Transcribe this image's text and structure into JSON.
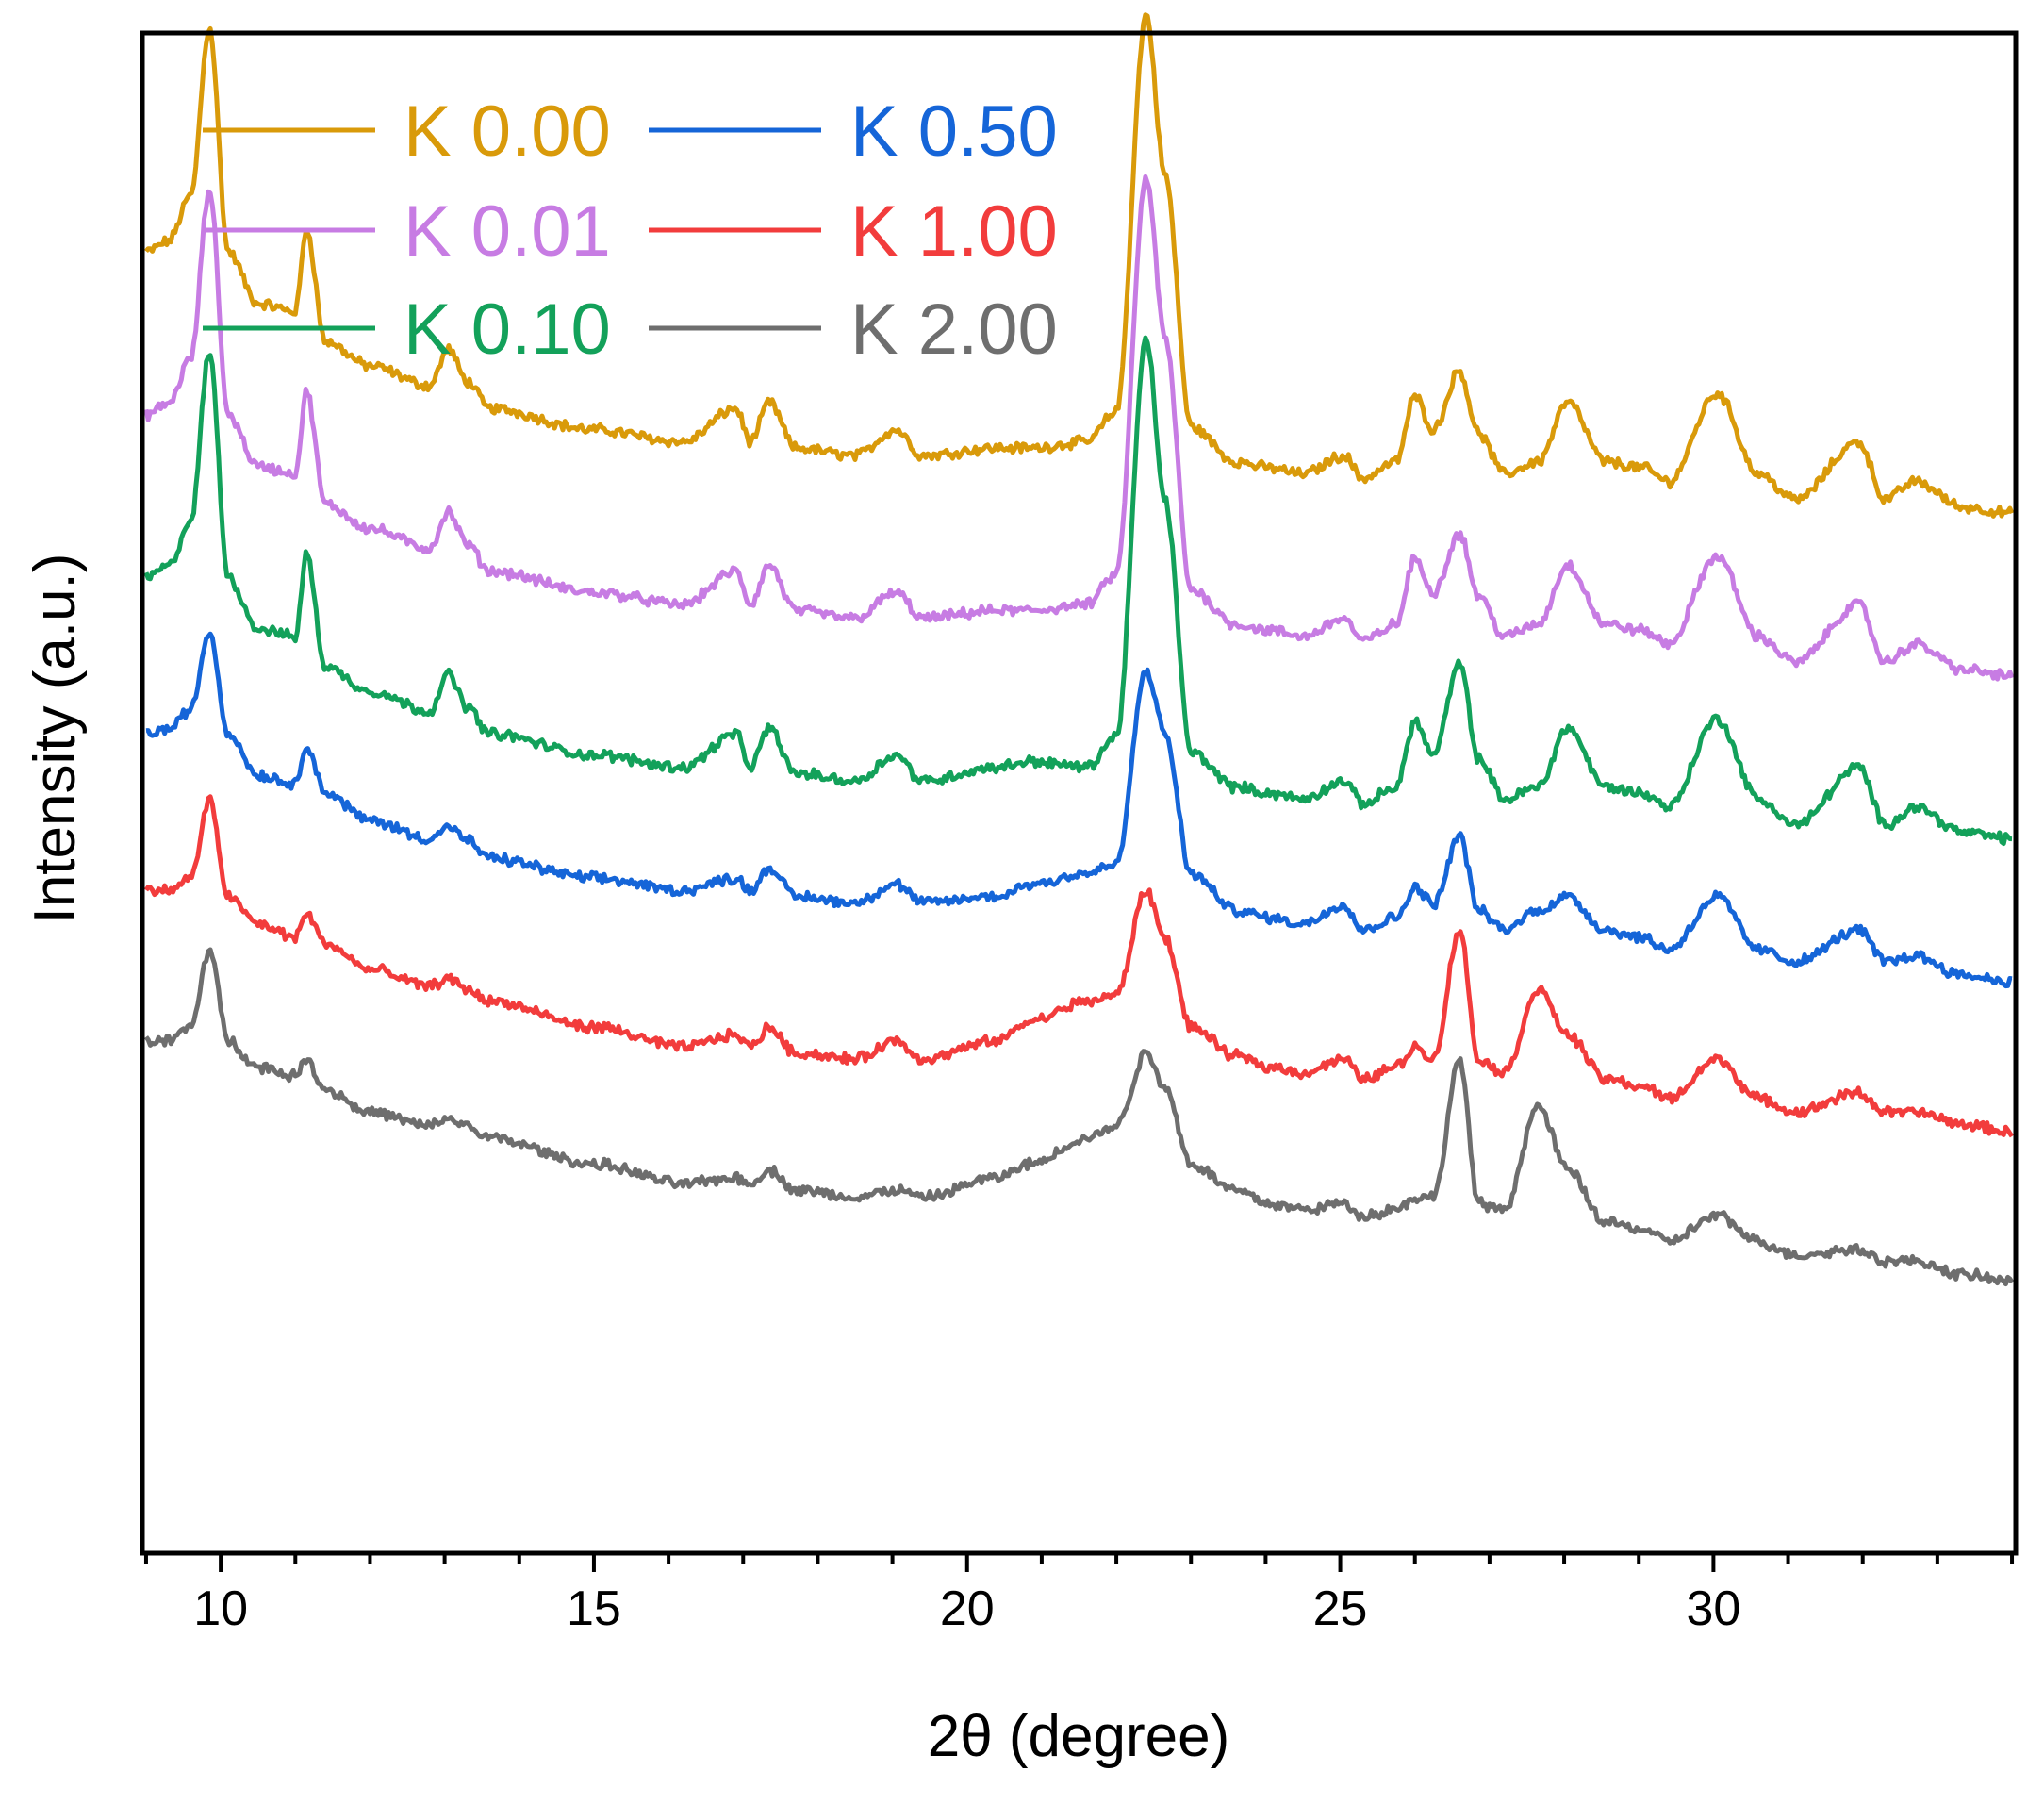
{
  "chart_data": {
    "type": "line",
    "title": "",
    "xlabel": "2θ (degree)",
    "ylabel": "Intensity (a.u.)",
    "xlim": [
      8.95,
      34.05
    ],
    "ylim": [
      0,
      100
    ],
    "x_ticks": [
      10,
      15,
      20,
      25,
      30
    ],
    "x_tick_labels": [
      "10",
      "15",
      "20",
      "25",
      "30"
    ],
    "y_ticks_shown": false,
    "grid": false,
    "legend_position": "top-left",
    "peak_positions_2theta": [
      9.85,
      11.15,
      13.05,
      13.3,
      16.9,
      17.35,
      19.05,
      20.4,
      20.85,
      22.4,
      22.65,
      23.6,
      24.05,
      25.05,
      25.75,
      26.0,
      26.25,
      26.6,
      26.85,
      27.65,
      28.05,
      28.55,
      29.05,
      30.05,
      31.95,
      32.7,
      33.35
    ],
    "series": [
      {
        "name": "K 0.00",
        "color": "#D99A0A",
        "offset": 60.7,
        "x": [
          9.0,
          9.3,
          9.6,
          9.85,
          10.1,
          10.5,
          11.0,
          11.15,
          11.4,
          12.0,
          12.8,
          13.05,
          13.3,
          13.6,
          15.0,
          16.2,
          16.9,
          17.1,
          17.35,
          17.7,
          18.5,
          19.05,
          19.4,
          20.4,
          20.85,
          21.6,
          22.0,
          22.4,
          22.65,
          23.0,
          23.6,
          24.05,
          24.5,
          25.05,
          25.3,
          25.75,
          26.0,
          26.25,
          26.6,
          26.85,
          27.2,
          27.65,
          28.05,
          28.55,
          29.05,
          29.4,
          30.05,
          30.6,
          31.1,
          31.95,
          32.3,
          32.7,
          33.35,
          34.0
        ],
        "y": [
          24.9,
          25.6,
          28.6,
          39.7,
          24.9,
          21.5,
          21.0,
          26.4,
          19.0,
          17.4,
          16.1,
          18.5,
          16.4,
          14.6,
          13.2,
          12.4,
          14.6,
          12.4,
          15.0,
          12.0,
          11.5,
          13.2,
          11.5,
          12.0,
          12.0,
          12.4,
          14.4,
          40.5,
          30.0,
          13.4,
          11.1,
          10.7,
          10.3,
          11.5,
          10.0,
          11.1,
          15.4,
          13.2,
          17.1,
          13.0,
          10.3,
          11.1,
          15.0,
          11.1,
          10.7,
          9.8,
          15.6,
          10.3,
          8.6,
          12.4,
          8.6,
          9.8,
          8.1,
          7.7
        ]
      },
      {
        "name": "K 0.01",
        "color": "#C77CE3",
        "offset": 50.0,
        "x": [
          9.0,
          9.3,
          9.6,
          9.85,
          10.1,
          10.5,
          11.0,
          11.15,
          11.4,
          12.0,
          12.8,
          13.05,
          13.3,
          13.6,
          15.0,
          16.2,
          16.9,
          17.1,
          17.35,
          17.7,
          18.5,
          19.05,
          19.4,
          20.4,
          20.85,
          21.6,
          22.0,
          22.4,
          22.65,
          23.0,
          23.6,
          24.05,
          24.5,
          25.05,
          25.3,
          25.75,
          26.0,
          26.25,
          26.6,
          26.85,
          27.2,
          27.65,
          28.05,
          28.55,
          29.05,
          29.4,
          30.05,
          30.6,
          31.1,
          31.95,
          32.3,
          32.7,
          33.35,
          34.0
        ],
        "y": [
          24.9,
          25.6,
          28.6,
          39.7,
          24.9,
          21.5,
          21.0,
          26.4,
          19.0,
          17.4,
          16.1,
          18.5,
          16.4,
          14.6,
          13.2,
          12.4,
          14.6,
          12.4,
          15.0,
          12.0,
          11.5,
          13.2,
          11.5,
          12.0,
          12.0,
          12.4,
          14.4,
          40.5,
          30.0,
          13.4,
          11.1,
          10.7,
          10.3,
          11.5,
          10.0,
          11.1,
          15.4,
          13.2,
          17.1,
          13.0,
          10.3,
          11.1,
          15.0,
          11.1,
          10.7,
          9.8,
          15.6,
          10.3,
          8.6,
          12.4,
          8.6,
          9.8,
          8.1,
          7.7
        ]
      },
      {
        "name": "K 0.10",
        "color": "#13A15A",
        "offset": 39.3,
        "x": [
          9.0,
          9.3,
          9.6,
          9.85,
          10.1,
          10.5,
          11.0,
          11.15,
          11.4,
          12.0,
          12.8,
          13.05,
          13.3,
          13.6,
          15.0,
          16.2,
          16.9,
          17.1,
          17.35,
          17.7,
          18.5,
          19.05,
          19.4,
          20.4,
          20.85,
          21.6,
          22.0,
          22.4,
          22.65,
          23.0,
          23.6,
          24.05,
          24.5,
          25.05,
          25.3,
          25.75,
          26.0,
          26.25,
          26.6,
          26.85,
          27.2,
          27.65,
          28.05,
          28.55,
          29.05,
          29.4,
          30.05,
          30.6,
          31.1,
          31.95,
          32.3,
          32.7,
          33.35,
          34.0
        ],
        "y": [
          24.9,
          25.6,
          28.6,
          39.7,
          24.9,
          21.5,
          21.0,
          26.4,
          19.0,
          17.4,
          16.1,
          18.5,
          16.4,
          14.6,
          13.2,
          12.4,
          14.6,
          12.4,
          15.0,
          12.0,
          11.5,
          13.2,
          11.5,
          12.4,
          12.8,
          12.4,
          14.4,
          40.5,
          30.0,
          13.4,
          11.1,
          10.7,
          10.3,
          11.5,
          10.0,
          11.1,
          15.4,
          13.2,
          19.2,
          13.0,
          10.3,
          11.1,
          15.0,
          11.1,
          10.7,
          9.8,
          15.6,
          10.3,
          8.6,
          12.4,
          8.6,
          9.8,
          8.1,
          7.7
        ]
      },
      {
        "name": "K 0.50",
        "color": "#1565D8",
        "offset": 28.6,
        "x": [
          9.0,
          9.3,
          9.6,
          9.85,
          10.1,
          10.5,
          11.0,
          11.15,
          11.4,
          12.0,
          12.8,
          13.05,
          13.3,
          13.6,
          15.0,
          16.2,
          16.9,
          17.1,
          17.35,
          17.7,
          18.5,
          19.05,
          19.4,
          20.4,
          20.85,
          21.6,
          22.0,
          22.4,
          22.65,
          23.0,
          23.6,
          24.05,
          24.5,
          25.05,
          25.3,
          25.75,
          26.0,
          26.25,
          26.6,
          26.85,
          27.2,
          27.65,
          28.05,
          28.55,
          29.05,
          29.4,
          30.05,
          30.6,
          31.1,
          31.95,
          32.3,
          32.7,
          33.35,
          34.0
        ],
        "y": [
          25.3,
          25.6,
          26.9,
          32.0,
          25.3,
          22.6,
          22.0,
          24.6,
          21.4,
          19.6,
          18.4,
          19.2,
          18.3,
          17.1,
          15.8,
          15.0,
          15.8,
          15.0,
          16.5,
          14.6,
          14.2,
          15.4,
          14.2,
          14.6,
          15.4,
          16.1,
          16.7,
          29.5,
          25.3,
          16.1,
          13.7,
          13.2,
          12.8,
          14.1,
          12.4,
          13.2,
          15.2,
          14.1,
          18.6,
          13.7,
          12.4,
          13.7,
          14.6,
          12.4,
          11.9,
          11.1,
          14.6,
          11.1,
          10.3,
          12.4,
          10.3,
          10.7,
          9.4,
          9.0
        ]
      },
      {
        "name": "K 1.00",
        "color": "#F23C3C",
        "offset": 17.9,
        "x": [
          9.0,
          9.3,
          9.6,
          9.85,
          10.1,
          10.5,
          11.0,
          11.15,
          11.4,
          12.0,
          12.8,
          13.05,
          13.3,
          13.6,
          15.0,
          16.2,
          16.9,
          17.1,
          17.35,
          17.7,
          18.5,
          19.05,
          19.4,
          20.4,
          20.85,
          21.6,
          22.0,
          22.4,
          22.65,
          23.0,
          23.6,
          24.05,
          24.5,
          25.05,
          25.3,
          25.75,
          26.0,
          26.25,
          26.6,
          26.85,
          27.2,
          27.65,
          28.05,
          28.55,
          29.05,
          29.4,
          30.05,
          30.6,
          31.1,
          31.95,
          32.3,
          32.7,
          33.35,
          34.0
        ],
        "y": [
          25.7,
          25.7,
          26.5,
          31.6,
          25.3,
          23.5,
          22.6,
          24.2,
          22.2,
          20.5,
          19.4,
          19.9,
          19.2,
          18.4,
          16.7,
          15.4,
          16.2,
          15.4,
          16.7,
          15.0,
          14.6,
          15.8,
          14.6,
          15.8,
          17.1,
          18.4,
          18.8,
          25.7,
          22.6,
          16.7,
          14.8,
          14.1,
          13.7,
          14.6,
          13.3,
          14.1,
          15.4,
          14.6,
          23.1,
          14.6,
          13.7,
          19.2,
          16.2,
          13.3,
          12.8,
          12.0,
          14.6,
          12.0,
          11.1,
          12.4,
          11.1,
          11.1,
          10.3,
          9.8
        ]
      },
      {
        "name": "K 2.00",
        "color": "#6E6E6E",
        "offset": 7.2,
        "x": [
          9.0,
          9.3,
          9.6,
          9.85,
          10.1,
          10.5,
          11.0,
          11.15,
          11.4,
          12.0,
          12.8,
          13.05,
          13.3,
          13.6,
          15.0,
          16.2,
          16.9,
          17.1,
          17.35,
          17.7,
          18.5,
          19.05,
          19.4,
          20.4,
          20.85,
          21.6,
          22.0,
          22.4,
          22.65,
          23.0,
          23.6,
          24.05,
          24.5,
          25.05,
          25.3,
          25.75,
          26.0,
          26.25,
          26.6,
          26.85,
          27.2,
          27.65,
          28.05,
          28.55,
          29.05,
          29.4,
          30.05,
          30.6,
          31.1,
          31.95,
          32.3,
          32.7,
          33.35,
          34.0
        ],
        "y": [
          26.5,
          26.5,
          27.4,
          32.5,
          26.5,
          24.8,
          24.2,
          25.3,
          23.3,
          21.8,
          20.9,
          21.4,
          20.9,
          20.1,
          18.4,
          17.1,
          17.5,
          17.1,
          18.0,
          16.7,
          16.2,
          16.7,
          16.2,
          17.5,
          18.4,
          20.1,
          20.9,
          25.7,
          23.5,
          18.4,
          16.7,
          15.8,
          15.4,
          15.8,
          15.0,
          15.4,
          16.2,
          16.2,
          25.3,
          15.8,
          15.4,
          22.2,
          18.0,
          14.6,
          14.1,
          13.3,
          15.0,
          13.3,
          12.4,
          12.8,
          12.0,
          12.0,
          11.1,
          10.7
        ]
      }
    ]
  }
}
